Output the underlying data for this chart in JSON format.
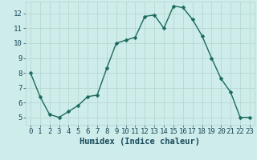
{
  "x": [
    0,
    1,
    2,
    3,
    4,
    5,
    6,
    7,
    8,
    9,
    10,
    11,
    12,
    13,
    14,
    15,
    16,
    17,
    18,
    19,
    20,
    21,
    22,
    23
  ],
  "y": [
    8.0,
    6.4,
    5.2,
    5.0,
    5.4,
    5.8,
    6.4,
    6.5,
    8.3,
    10.0,
    10.2,
    10.4,
    11.8,
    11.9,
    11.0,
    12.5,
    12.4,
    11.6,
    10.5,
    9.0,
    7.6,
    6.7,
    5.0,
    5.0
  ],
  "line_color": "#1a6b5a",
  "marker": "D",
  "marker_size": 2.5,
  "bg_color": "#ceecea",
  "grid_color": "#b8d8d4",
  "xlabel": "Humidex (Indice chaleur)",
  "xlim": [
    -0.5,
    23.5
  ],
  "ylim": [
    4.5,
    12.8
  ],
  "yticks": [
    5,
    6,
    7,
    8,
    9,
    10,
    11,
    12
  ],
  "xticks": [
    0,
    1,
    2,
    3,
    4,
    5,
    6,
    7,
    8,
    9,
    10,
    11,
    12,
    13,
    14,
    15,
    16,
    17,
    18,
    19,
    20,
    21,
    22,
    23
  ],
  "font_color": "#1a4a5c",
  "tick_label_size": 6.5,
  "xlabel_size": 7.5,
  "linewidth": 1.0
}
